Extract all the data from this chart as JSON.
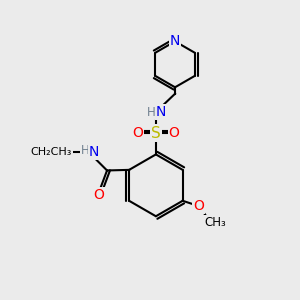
{
  "bg_color": "#ebebeb",
  "atom_colors": {
    "C": "#000000",
    "N": "#0000ee",
    "O": "#ff0000",
    "S": "#bbbb00",
    "H": "#708090"
  },
  "bond_color": "#000000",
  "bond_width": 1.5,
  "font_size_main": 10,
  "font_size_small": 8.5
}
